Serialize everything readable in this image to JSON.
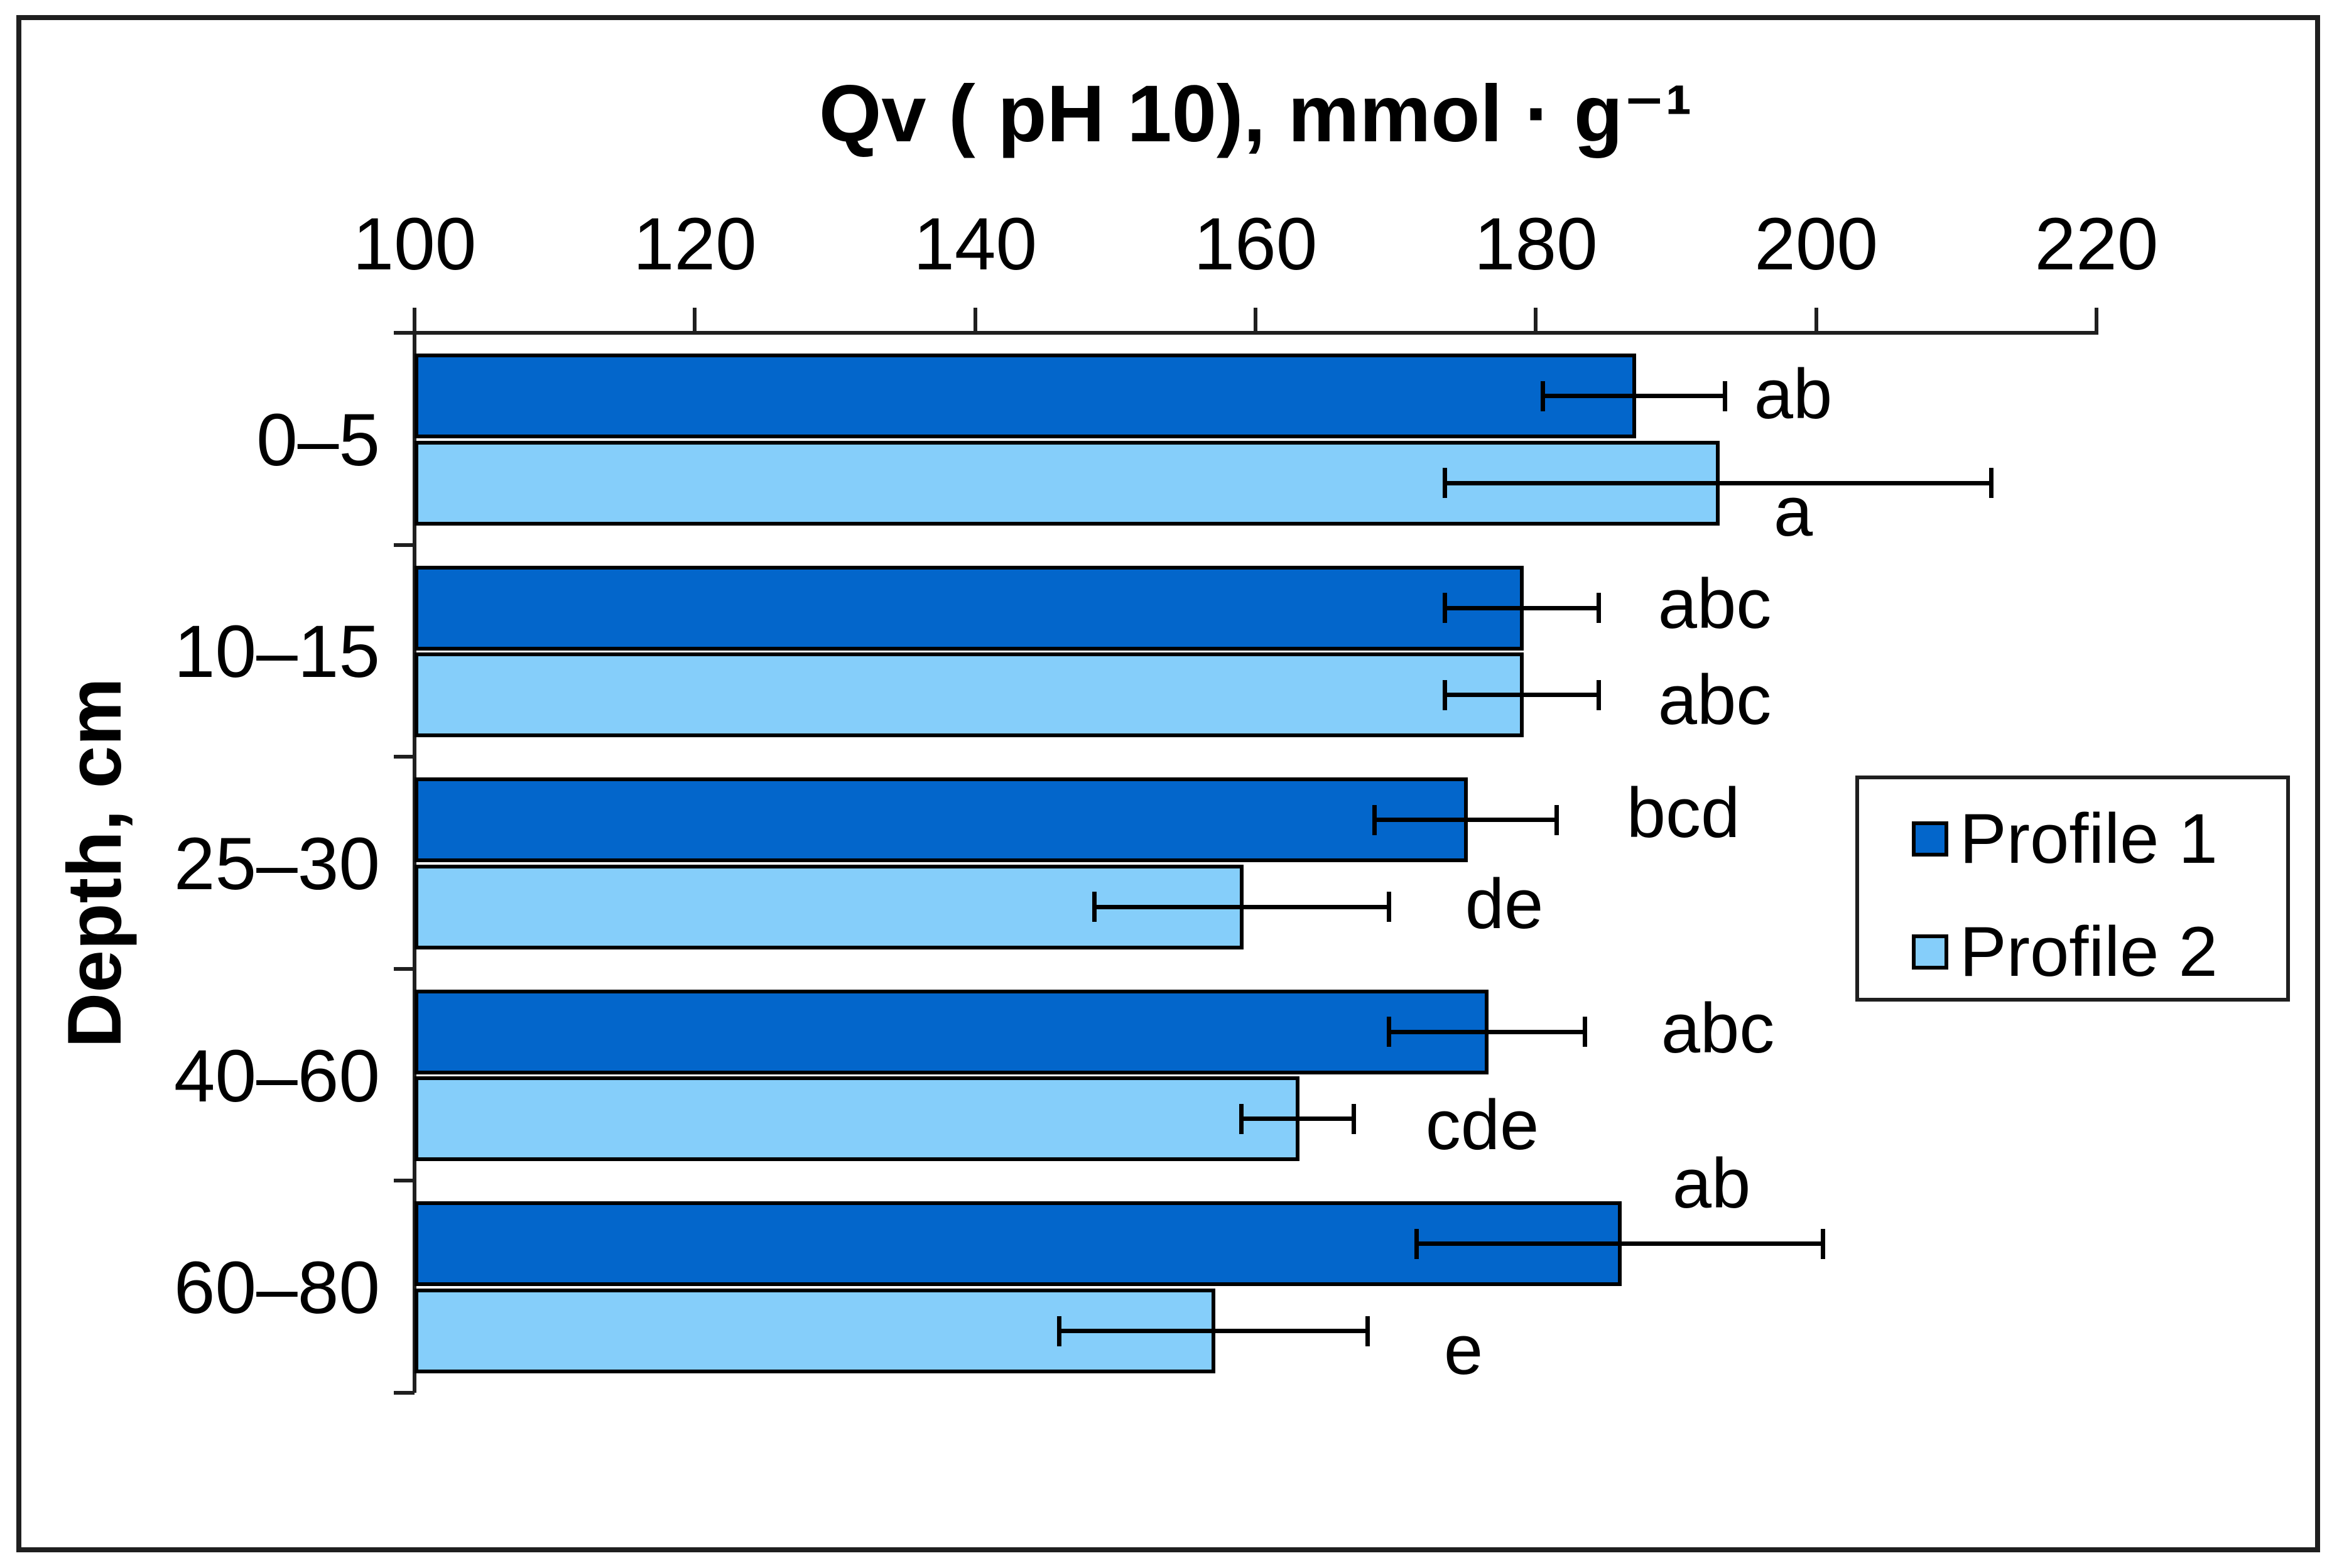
{
  "chart_data": {
    "type": "bar",
    "orientation": "horizontal",
    "title": "Qv ( pH 10), mmol · g⁻¹",
    "ylabel": "Depth, cm",
    "categories": [
      "0–5",
      "10–15",
      "25–30",
      "40–60",
      "60–80"
    ],
    "x_ticks": [
      "100",
      "120",
      "140",
      "160",
      "180",
      "200",
      "220"
    ],
    "xlim": [
      100,
      220
    ],
    "grid": false,
    "legend_position": "right-middle",
    "series": [
      {
        "name": "Profile 1",
        "color": "#0366CB",
        "values": [
          187,
          179,
          175,
          176.5,
          186
        ],
        "errors": [
          6.5,
          5.5,
          6.5,
          7,
          14.5
        ],
        "sig_labels": [
          "ab",
          "abc",
          "bcd",
          "abc",
          "ab"
        ]
      },
      {
        "name": "Profile 2",
        "color": "#85CEFA",
        "values": [
          193,
          179,
          159,
          163,
          157
        ],
        "errors": [
          19.5,
          5.5,
          10.5,
          4,
          11
        ],
        "sig_labels": [
          "a",
          "abc",
          "de",
          "cde",
          "e"
        ]
      }
    ]
  },
  "legend": {
    "entries": [
      "Profile 1",
      "Profile 2"
    ]
  }
}
